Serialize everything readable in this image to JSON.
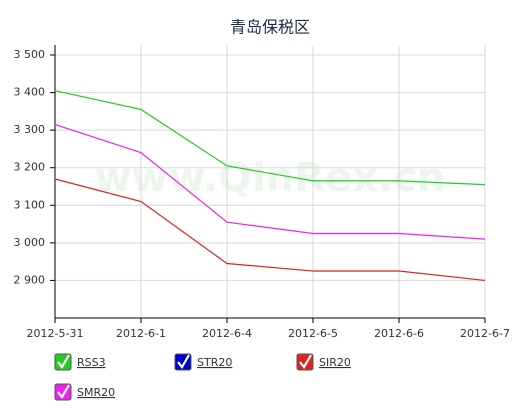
{
  "chart_data": {
    "type": "line",
    "title": "青岛保税区",
    "watermark": "www.QinRex.cn",
    "categories": [
      "2012-5-31",
      "2012-6-1",
      "2012-6-4",
      "2012-6-5",
      "2012-6-6",
      "2012-6-7"
    ],
    "series": [
      {
        "name": "RSS3",
        "color": "#22cc22",
        "values": [
          3405,
          3355,
          3205,
          3165,
          3165,
          3155
        ]
      },
      {
        "name": "STR20",
        "color": "#0000cc",
        "values": [
          null,
          null,
          null,
          null,
          null,
          null
        ]
      },
      {
        "name": "SIR20",
        "color": "#dd2222",
        "values": [
          3170,
          3110,
          2945,
          2925,
          2925,
          2900
        ]
      },
      {
        "name": "SMR20",
        "color": "#ee22ee",
        "values": [
          3315,
          3240,
          3055,
          3025,
          3025,
          3010
        ]
      }
    ],
    "ylim": [
      2800,
      3500
    ],
    "yticks": [
      {
        "value": 2900,
        "label": "2 900"
      },
      {
        "value": 3000,
        "label": "3 000"
      },
      {
        "value": 3100,
        "label": "3 100"
      },
      {
        "value": 3200,
        "label": "3 200"
      },
      {
        "value": 3300,
        "label": "3 300"
      },
      {
        "value": 3400,
        "label": "3 400"
      },
      {
        "value": 3500,
        "label": "3 500"
      }
    ],
    "grid": true
  }
}
